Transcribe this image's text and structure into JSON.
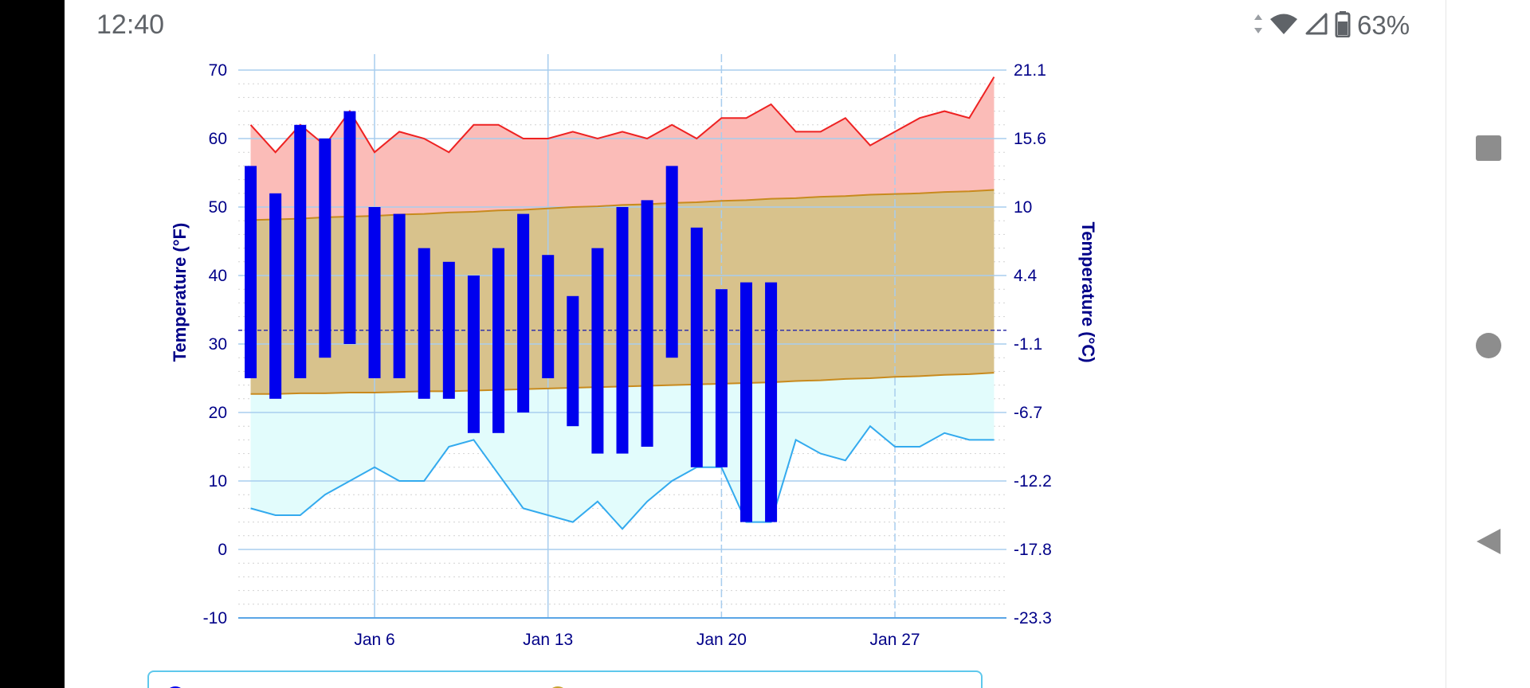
{
  "status_bar": {
    "time": "12:40",
    "battery_percent": "63%",
    "icons": [
      "data-arrows-icon",
      "wifi-icon",
      "cell-signal-icon",
      "battery-icon"
    ]
  },
  "nav_bar": {
    "buttons": [
      "recents-square-icon",
      "home-circle-icon",
      "back-triangle-icon"
    ]
  },
  "chart_data": {
    "type": "bar",
    "title": "",
    "ylabel": "Temperature (°F)",
    "y2label": "Temperature (°C)",
    "ylim": [
      -10,
      70
    ],
    "yticks": [
      -10,
      0,
      10,
      20,
      30,
      40,
      50,
      60,
      70
    ],
    "y2ticks": [
      "-23.3",
      "-17.8",
      "-12.2",
      "-6.7",
      "-1.1",
      "4.4",
      "10",
      "15.6",
      "21.1"
    ],
    "xlim_day": [
      0.5,
      31.5
    ],
    "xticks": [
      {
        "label": "Jan 6",
        "day": 6
      },
      {
        "label": "Jan 13",
        "day": 13
      },
      {
        "label": "Jan 20",
        "day": 20
      },
      {
        "label": "Jan 27",
        "day": 27
      }
    ],
    "grid": true,
    "freezing_line_f": 32,
    "days": [
      1,
      2,
      3,
      4,
      5,
      6,
      7,
      8,
      9,
      10,
      11,
      12,
      13,
      14,
      15,
      16,
      17,
      18,
      19,
      20,
      21,
      22,
      23,
      24,
      25,
      26,
      27,
      28,
      29,
      30,
      31
    ],
    "record_high": [
      62,
      58,
      62,
      59,
      64,
      58,
      61,
      60,
      58,
      62,
      62,
      60,
      60,
      61,
      60,
      61,
      60,
      62,
      60,
      63,
      63,
      65,
      61,
      61,
      63,
      59,
      61,
      63,
      64,
      63,
      69
    ],
    "normal_high": [
      48.1,
      48.2,
      48.3,
      48.5,
      48.6,
      48.7,
      48.9,
      49.0,
      49.2,
      49.3,
      49.5,
      49.6,
      49.8,
      50.0,
      50.1,
      50.3,
      50.4,
      50.6,
      50.7,
      50.9,
      51.0,
      51.2,
      51.3,
      51.5,
      51.6,
      51.8,
      51.9,
      52.0,
      52.2,
      52.3,
      52.5
    ],
    "normal_low": [
      22.7,
      22.7,
      22.8,
      22.8,
      22.9,
      22.9,
      23.0,
      23.1,
      23.1,
      23.2,
      23.3,
      23.4,
      23.5,
      23.6,
      23.7,
      23.8,
      23.9,
      24.0,
      24.1,
      24.2,
      24.3,
      24.4,
      24.6,
      24.7,
      24.9,
      25.0,
      25.2,
      25.3,
      25.5,
      25.6,
      25.8
    ],
    "record_low": [
      6,
      5,
      5,
      8,
      10,
      12,
      10,
      10,
      15,
      16,
      11,
      6,
      5,
      4,
      7,
      3,
      7,
      10,
      12,
      12,
      4,
      4,
      16,
      14,
      13,
      18,
      15,
      15,
      17,
      16,
      16
    ],
    "series": [
      {
        "name": "",
        "color": "#0000ee",
        "type": "range-bar",
        "days": [
          1,
          2,
          3,
          4,
          5,
          6,
          7,
          8,
          9,
          10,
          11,
          12,
          13,
          14,
          15,
          16,
          17,
          18,
          19,
          20,
          21,
          22
        ],
        "high": [
          56,
          52,
          62,
          60,
          64,
          50,
          49,
          44,
          42,
          40,
          44,
          49,
          43,
          37,
          44,
          50,
          51,
          56,
          47,
          38,
          39,
          39
        ],
        "low": [
          25,
          22,
          25,
          28,
          30,
          25,
          25,
          22,
          22,
          17,
          17,
          20,
          25,
          18,
          14,
          14,
          15,
          28,
          12,
          12,
          4,
          4
        ]
      }
    ],
    "colors": {
      "record_high_line": "#ee2222",
      "record_high_fill": "#fbbcb8",
      "normal_band_fill": "#d8c28c",
      "normal_band_line": "#c88a1e",
      "record_low_line": "#33aaee",
      "record_low_fill": "#e2fcfc",
      "bars": "#0000ee",
      "freezing_line": "#3333aa",
      "axis_text": "#000088",
      "grid": "#a8cdee"
    }
  }
}
